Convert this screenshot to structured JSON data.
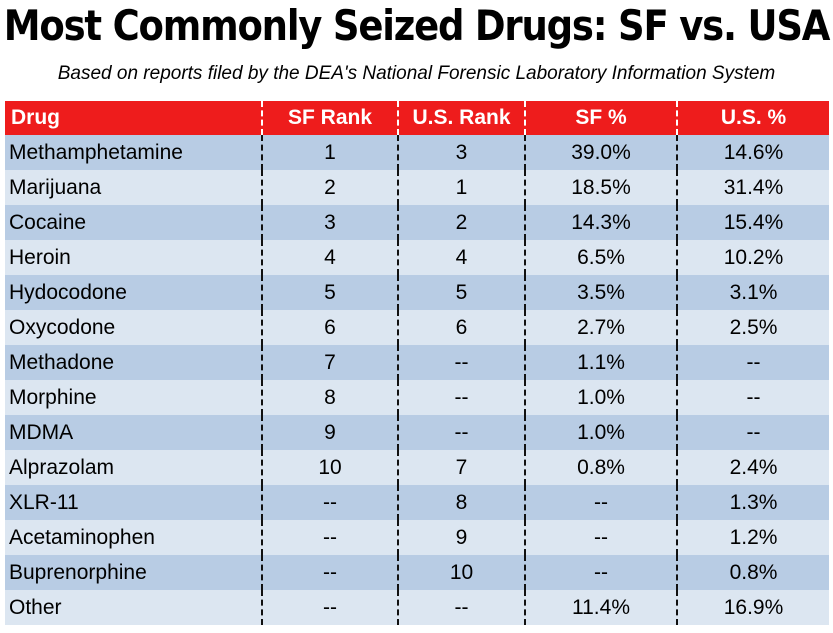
{
  "title": "Most Commonly Seized Drugs: SF vs. USA",
  "subtitle": "Based on reports filed by the DEA's National Forensic Laboratory Information System",
  "colors": {
    "header_bg": "#ee1c1c",
    "row_dark": "#b8cce4",
    "row_light": "#dce6f1"
  },
  "chart_data": {
    "type": "table",
    "title": "Most Commonly Seized Drugs: SF vs. USA",
    "subtitle": "Based on reports filed by the DEA's National Forensic Laboratory Information System",
    "columns": [
      "Drug",
      "SF Rank",
      "U.S. Rank",
      "SF %",
      "U.S. %"
    ],
    "rows": [
      [
        "Methamphetamine",
        "1",
        "3",
        "39.0%",
        "14.6%"
      ],
      [
        "Marijuana",
        "2",
        "1",
        "18.5%",
        "31.4%"
      ],
      [
        "Cocaine",
        "3",
        "2",
        "14.3%",
        "15.4%"
      ],
      [
        "Heroin",
        "4",
        "4",
        "6.5%",
        "10.2%"
      ],
      [
        "Hydocodone",
        "5",
        "5",
        "3.5%",
        "3.1%"
      ],
      [
        "Oxycodone",
        "6",
        "6",
        "2.7%",
        "2.5%"
      ],
      [
        "Methadone",
        "7",
        "--",
        "1.1%",
        "--"
      ],
      [
        "Morphine",
        "8",
        "--",
        "1.0%",
        "--"
      ],
      [
        "MDMA",
        "9",
        "--",
        "1.0%",
        "--"
      ],
      [
        "Alprazolam",
        "10",
        "7",
        "0.8%",
        "2.4%"
      ],
      [
        "XLR-11",
        "--",
        "8",
        "--",
        "1.3%"
      ],
      [
        "Acetaminophen",
        "--",
        "9",
        "--",
        "1.2%"
      ],
      [
        "Buprenorphine",
        "--",
        "10",
        "--",
        "0.8%"
      ],
      [
        "Other",
        "--",
        "--",
        "11.4%",
        "16.9%"
      ]
    ]
  }
}
